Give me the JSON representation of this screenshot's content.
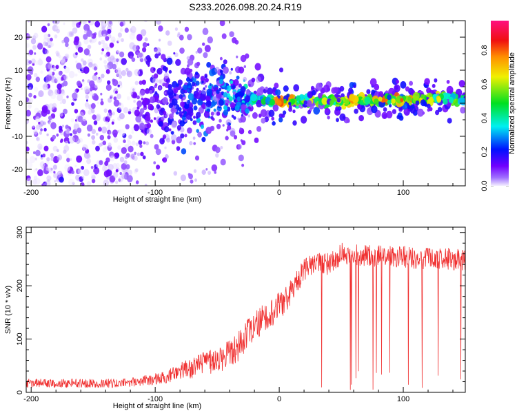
{
  "title": "S233.2026.098.20.24.R19",
  "chart_data": [
    {
      "type": "heatmap",
      "title": "S233.2026.098.20.24.R19",
      "xlabel": "Height of straight line (km)",
      "ylabel": "Frequency (Hz)",
      "xlim": [
        -204,
        150
      ],
      "ylim": [
        -25,
        25
      ],
      "xticks": [
        -200,
        -100,
        0,
        100
      ],
      "xtick_labels": [
        "-200",
        "-100",
        "0",
        "100"
      ],
      "yticks": [
        -20,
        -10,
        0,
        10,
        20
      ],
      "ytick_labels": [
        "-20",
        "-10",
        "0",
        "10",
        "20"
      ],
      "colorbar": {
        "label": "Normalized spectral amplitude",
        "range": [
          0,
          0.975
        ],
        "ticks": [
          0.0,
          0.2,
          0.4,
          0.6,
          0.8
        ],
        "tick_labels": [
          "0.0",
          "0.2",
          "0.4",
          "0.6",
          "0.8"
        ]
      },
      "envelope": {
        "x": [
          -200,
          -190,
          -180,
          -170,
          -160,
          -150,
          -140,
          -130,
          -120,
          -110,
          -100,
          -90,
          -80,
          -70,
          -60,
          -50,
          -40,
          -30,
          -20,
          -10,
          0,
          10,
          20,
          30,
          40,
          50,
          60,
          70,
          80,
          90,
          100,
          110,
          120,
          130,
          140,
          150
        ],
        "center_hz": [
          0,
          0,
          0,
          0,
          0,
          0,
          0,
          0,
          0,
          1,
          2,
          1,
          1,
          2,
          2,
          2,
          2,
          2,
          1,
          1,
          0.5,
          1,
          0.8,
          0.5,
          0.5,
          0.8,
          1,
          1,
          1,
          1.2,
          1,
          1.2,
          1.5,
          1.5,
          1.2,
          1.2
        ],
        "spread_hz": [
          25,
          25,
          25,
          25,
          25,
          25,
          25,
          25,
          25,
          16,
          14,
          12,
          10,
          9,
          8,
          7,
          6,
          4,
          2.5,
          2,
          1.5,
          1.5,
          1.5,
          1.5,
          1.5,
          1.5,
          1.5,
          1.5,
          1.5,
          1.5,
          1.5,
          1.5,
          1.5,
          1.5,
          1.5,
          1.5
        ],
        "peak_amplitude": [
          0.12,
          0.12,
          0.12,
          0.12,
          0.12,
          0.12,
          0.12,
          0.12,
          0.12,
          0.15,
          0.2,
          0.2,
          0.25,
          0.3,
          0.35,
          0.3,
          0.4,
          0.4,
          0.5,
          0.55,
          0.9,
          0.8,
          0.6,
          0.85,
          0.6,
          0.75,
          0.85,
          0.6,
          0.85,
          0.85,
          0.9,
          0.85,
          0.7,
          0.7,
          0.6,
          0.6
        ]
      }
    },
    {
      "type": "line",
      "xlabel": "Height of straight line (km)",
      "ylabel": "SNR (10 * v/v)",
      "xlim": [
        -204,
        150
      ],
      "ylim": [
        0,
        310
      ],
      "xticks": [
        -200,
        -100,
        0,
        100
      ],
      "xtick_labels": [
        "-200",
        "-100",
        "0",
        "100"
      ],
      "yticks": [
        0,
        100,
        200,
        300
      ],
      "ytick_labels": [
        "0",
        "100",
        "200",
        "300"
      ],
      "series": [
        {
          "name": "SNR",
          "color": "#f03030",
          "x": [
            -204,
            -190,
            -180,
            -170,
            -160,
            -150,
            -140,
            -130,
            -120,
            -110,
            -100,
            -90,
            -80,
            -70,
            -60,
            -50,
            -40,
            -30,
            -20,
            -10,
            0,
            10,
            20,
            30,
            40,
            50,
            60,
            70,
            80,
            90,
            100,
            110,
            120,
            130,
            140,
            150
          ],
          "mean": [
            17,
            17,
            17,
            17,
            17,
            17,
            17,
            17,
            18,
            22,
            25,
            30,
            38,
            45,
            55,
            60,
            75,
            95,
            120,
            145,
            160,
            190,
            230,
            245,
            240,
            260,
            258,
            258,
            255,
            255,
            255,
            252,
            252,
            250,
            250,
            250
          ],
          "spread": [
            12,
            12,
            12,
            12,
            12,
            12,
            12,
            12,
            12,
            14,
            15,
            18,
            25,
            30,
            30,
            35,
            40,
            45,
            45,
            40,
            40,
            35,
            30,
            25,
            30,
            30,
            30,
            30,
            30,
            30,
            30,
            30,
            30,
            30,
            30,
            30
          ],
          "dropout_start_km": 30
        }
      ]
    }
  ]
}
